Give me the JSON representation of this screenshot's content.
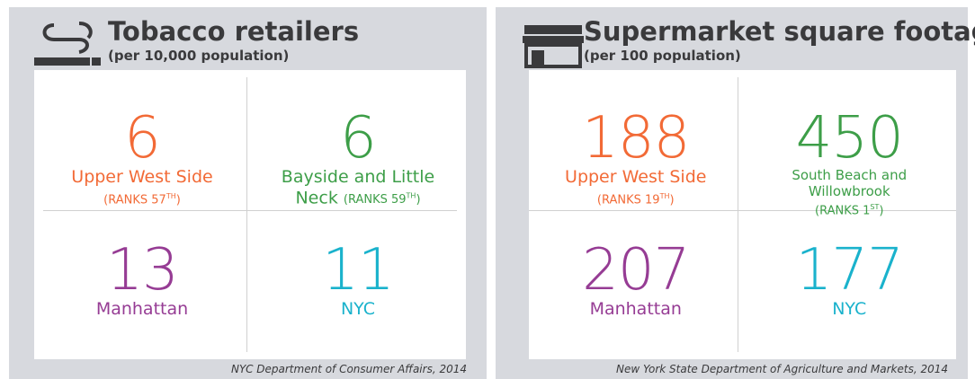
{
  "panels": [
    {
      "title": "Tobacco retailers",
      "subtitle": "(per 10,000 population)",
      "cells": [
        {
          "value": 6,
          "label": "Upper West Side",
          "rank": {
            "text": "(RANKS 57",
            "sup": "TH",
            "end": ")"
          }
        },
        {
          "value": 6,
          "label": "Bayside and Little Neck",
          "rank": {
            "text": "(RANKS 59",
            "sup": "TH",
            "end": ")"
          }
        },
        {
          "value": 13,
          "label": "Manhattan"
        },
        {
          "value": 11,
          "label": "NYC"
        }
      ],
      "source": "NYC Department of Consumer Affairs, 2014"
    },
    {
      "title": "Supermarket square footage",
      "subtitle": "(per 100 population)",
      "cells": [
        {
          "value": 188,
          "label": "Upper West Side",
          "rank": {
            "text": "(RANKS 19",
            "sup": "TH",
            "end": ")"
          }
        },
        {
          "value": 450,
          "label": "South Beach and Willowbrook",
          "rank": {
            "text": "(RANKS 1",
            "sup": "ST",
            "end": ")"
          }
        },
        {
          "value": 207,
          "label": "Manhattan"
        },
        {
          "value": 177,
          "label": "NYC"
        }
      ],
      "source": "New York State Department of Agriculture and Markets, 2014"
    }
  ]
}
